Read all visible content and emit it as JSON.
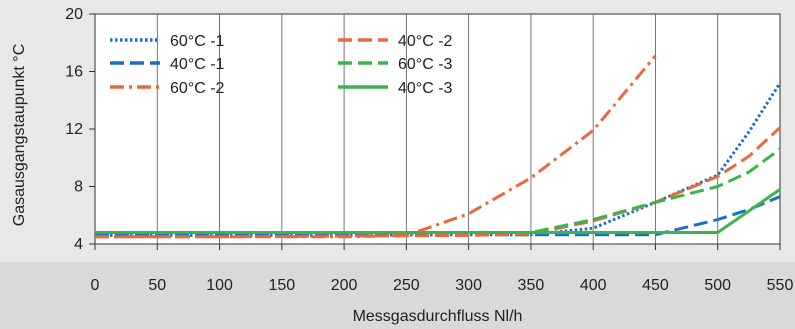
{
  "chart_data": {
    "type": "line",
    "xlabel": "Messgasdurchfluss Nl/h",
    "ylabel": "Gasausgangstaupunkt °C",
    "xlim": [
      0,
      550
    ],
    "ylim": [
      4,
      20
    ],
    "x_ticks": [
      "0",
      "50",
      "100",
      "150",
      "200",
      "250",
      "300",
      "350",
      "400",
      "450",
      "500",
      "550"
    ],
    "y_ticks": [
      "4",
      "8",
      "12",
      "16",
      "20"
    ],
    "grid": "vertical",
    "legend_position": "top-left",
    "series": [
      {
        "name": "60°C -1",
        "color": "#1a6fc4",
        "dash": "dotted",
        "x": [
          0,
          100,
          200,
          300,
          350,
          400,
          450,
          500,
          525,
          550
        ],
        "y": [
          4.6,
          4.6,
          4.6,
          4.65,
          4.65,
          5.1,
          6.9,
          8.8,
          11.8,
          15.2
        ]
      },
      {
        "name": "40°C -1",
        "color": "#1a6fc4",
        "dash": "dashed",
        "x": [
          0,
          100,
          200,
          300,
          350,
          400,
          450,
          500,
          525,
          550
        ],
        "y": [
          4.6,
          4.6,
          4.6,
          4.65,
          4.65,
          4.65,
          4.65,
          5.7,
          6.4,
          7.3
        ]
      },
      {
        "name": "60°C -2",
        "color": "#e8693c",
        "dash": "dashdot",
        "x": [
          0,
          100,
          200,
          250,
          300,
          350,
          400,
          450
        ],
        "y": [
          4.5,
          4.5,
          4.5,
          4.6,
          6.1,
          8.6,
          11.9,
          17.1
        ]
      },
      {
        "name": "40°C -2",
        "color": "#e8693c",
        "dash": "dashed",
        "x": [
          0,
          100,
          200,
          300,
          350,
          400,
          450,
          500,
          525,
          550
        ],
        "y": [
          4.5,
          4.5,
          4.55,
          4.6,
          4.7,
          5.6,
          6.9,
          8.7,
          10.1,
          12.1
        ]
      },
      {
        "name": "60°C -3",
        "color": "#3cb44b",
        "dash": "dashed",
        "x": [
          0,
          100,
          200,
          300,
          350,
          400,
          450,
          500,
          525,
          550
        ],
        "y": [
          4.8,
          4.8,
          4.8,
          4.8,
          4.8,
          5.7,
          6.9,
          8.0,
          9.0,
          10.6
        ]
      },
      {
        "name": "40°C -3",
        "color": "#3cb44b",
        "dash": "solid",
        "x": [
          0,
          100,
          200,
          300,
          350,
          400,
          450,
          500,
          550
        ],
        "y": [
          4.8,
          4.8,
          4.8,
          4.8,
          4.8,
          4.8,
          4.8,
          4.8,
          7.8
        ]
      }
    ]
  }
}
